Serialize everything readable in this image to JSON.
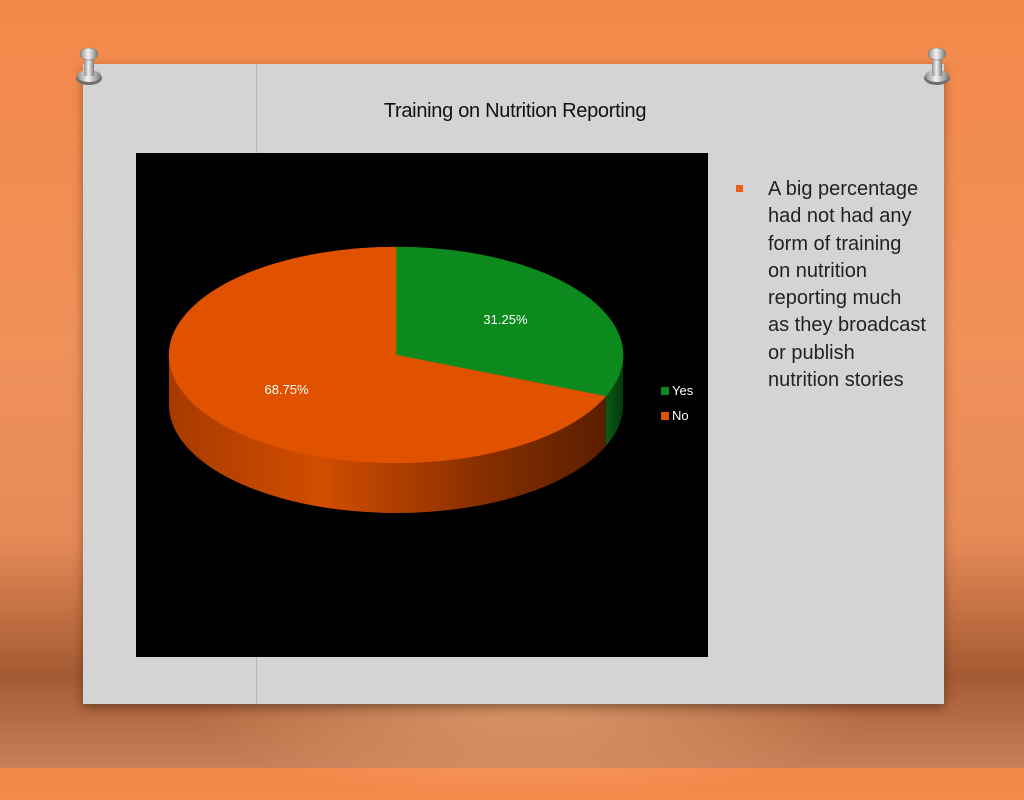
{
  "slide": {
    "bullet_text": "A big percentage had not had any form of training on nutrition reporting much as they broadcast or publish nutrition stories"
  },
  "colors": {
    "yes": "#0d8a1e",
    "no": "#e05200",
    "bullet": "#e8601a",
    "chart_bg": "#000000"
  },
  "chart_data": {
    "type": "pie",
    "title": "Training on Nutrition Reporting",
    "categories": [
      "Yes",
      "No"
    ],
    "values": [
      31.25,
      68.75
    ],
    "data_labels": [
      "31.25%",
      "68.75%"
    ],
    "legend": {
      "position": "right",
      "entries": [
        "Yes",
        "No"
      ]
    },
    "style": "3d"
  }
}
